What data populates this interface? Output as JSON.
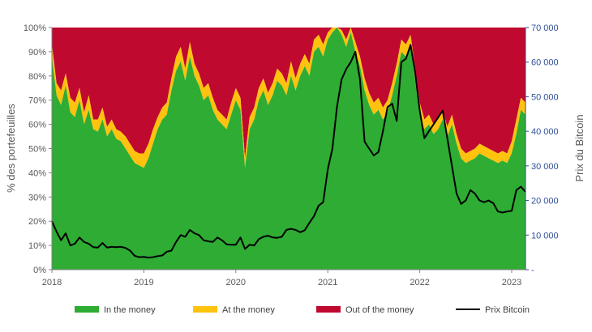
{
  "chart_data": {
    "type": "area",
    "ylabel_left": "% des portefeuilles",
    "ylabel_right": "Prix du Bitcoin",
    "x_ticks": [
      "2018",
      "2019",
      "2020",
      "2021",
      "2022",
      "2023"
    ],
    "x_range": [
      2018.0,
      2023.15
    ],
    "y_left_range": [
      0,
      100
    ],
    "y_left_ticks": [
      "0%",
      "10%",
      "20%",
      "30%",
      "40%",
      "50%",
      "60%",
      "70%",
      "80%",
      "90%",
      "100%"
    ],
    "y_right_range": [
      0,
      70000
    ],
    "y_right_ticks": [
      "-",
      "10 000",
      "20 000",
      "30 000",
      "40 000",
      "50 000",
      "60 000",
      "70 000"
    ],
    "colors": {
      "in_the_money": "#2eac33",
      "at_the_money": "#ffc20e",
      "out_of_the_money": "#c0092f",
      "price_line": "#000000",
      "right_axis": "#2f4f9a"
    },
    "legend": {
      "in_the_money": "In the money",
      "at_the_money": "At the money",
      "out_of_the_money": "Out of the money",
      "price": "Prix Bitcoin"
    },
    "x": [
      2018.0,
      2018.05,
      2018.1,
      2018.15,
      2018.2,
      2018.25,
      2018.3,
      2018.35,
      2018.4,
      2018.45,
      2018.5,
      2018.55,
      2018.6,
      2018.65,
      2018.7,
      2018.75,
      2018.8,
      2018.85,
      2018.9,
      2018.95,
      2019.0,
      2019.05,
      2019.1,
      2019.15,
      2019.2,
      2019.25,
      2019.3,
      2019.35,
      2019.4,
      2019.45,
      2019.5,
      2019.55,
      2019.6,
      2019.65,
      2019.7,
      2019.75,
      2019.8,
      2019.85,
      2019.9,
      2019.95,
      2020.0,
      2020.05,
      2020.1,
      2020.15,
      2020.2,
      2020.25,
      2020.3,
      2020.35,
      2020.4,
      2020.45,
      2020.5,
      2020.55,
      2020.6,
      2020.65,
      2020.7,
      2020.75,
      2020.8,
      2020.85,
      2020.9,
      2020.95,
      2021.0,
      2021.05,
      2021.1,
      2021.15,
      2021.2,
      2021.25,
      2021.3,
      2021.35,
      2021.4,
      2021.45,
      2021.5,
      2021.55,
      2021.6,
      2021.65,
      2021.7,
      2021.75,
      2021.8,
      2021.85,
      2021.9,
      2021.95,
      2022.0,
      2022.05,
      2022.1,
      2022.15,
      2022.2,
      2022.25,
      2022.3,
      2022.35,
      2022.4,
      2022.45,
      2022.5,
      2022.55,
      2022.6,
      2022.65,
      2022.7,
      2022.75,
      2022.8,
      2022.85,
      2022.9,
      2022.95,
      2023.0,
      2023.05,
      2023.1,
      2023.15
    ],
    "series": [
      {
        "name": "In the money",
        "values": [
          88,
          72,
          68,
          76,
          65,
          63,
          70,
          60,
          66,
          58,
          57,
          62,
          55,
          58,
          54,
          53,
          50,
          47,
          44,
          43,
          42,
          46,
          52,
          58,
          62,
          64,
          74,
          82,
          86,
          78,
          88,
          80,
          76,
          70,
          72,
          66,
          62,
          60,
          58,
          64,
          70,
          66,
          42,
          58,
          62,
          70,
          74,
          68,
          72,
          78,
          76,
          72,
          80,
          74,
          80,
          84,
          80,
          90,
          92,
          88,
          95,
          98,
          100,
          97,
          92,
          98,
          90,
          84,
          74,
          68,
          64,
          66,
          62,
          65,
          72,
          80,
          90,
          88,
          92,
          78,
          64,
          58,
          60,
          56,
          58,
          62,
          55,
          60,
          52,
          46,
          44,
          45,
          46,
          48,
          47,
          46,
          45,
          44,
          45,
          44,
          48,
          56,
          66,
          64
        ]
      },
      {
        "name": "At the money",
        "values": [
          5,
          5,
          6,
          5,
          6,
          6,
          5,
          5,
          6,
          4,
          5,
          5,
          4,
          4,
          4,
          4,
          5,
          5,
          5,
          5,
          6,
          6,
          6,
          5,
          5,
          5,
          5,
          6,
          6,
          5,
          6,
          5,
          5,
          5,
          5,
          5,
          4,
          4,
          4,
          5,
          5,
          5,
          4,
          5,
          5,
          5,
          5,
          5,
          5,
          5,
          5,
          5,
          6,
          5,
          5,
          5,
          5,
          5,
          5,
          5,
          3,
          2,
          0,
          2,
          3,
          2,
          4,
          4,
          5,
          5,
          5,
          5,
          5,
          5,
          5,
          5,
          5,
          5,
          5,
          5,
          5,
          4,
          4,
          4,
          5,
          4,
          4,
          4,
          4,
          4,
          4,
          4,
          4,
          4,
          4,
          4,
          4,
          4,
          4,
          4,
          5,
          6,
          5,
          5
        ]
      },
      {
        "name": "Out of the money",
        "values": [
          7,
          23,
          26,
          19,
          29,
          31,
          25,
          35,
          28,
          38,
          38,
          33,
          41,
          38,
          42,
          43,
          45,
          48,
          51,
          52,
          52,
          48,
          42,
          37,
          33,
          31,
          21,
          12,
          8,
          17,
          6,
          15,
          19,
          25,
          23,
          29,
          34,
          36,
          38,
          31,
          25,
          29,
          54,
          37,
          33,
          25,
          21,
          27,
          23,
          17,
          19,
          23,
          14,
          21,
          15,
          11,
          15,
          5,
          3,
          7,
          2,
          0,
          0,
          1,
          5,
          0,
          6,
          12,
          21,
          27,
          31,
          29,
          33,
          30,
          23,
          15,
          5,
          7,
          3,
          17,
          31,
          38,
          36,
          40,
          37,
          34,
          41,
          36,
          44,
          50,
          52,
          51,
          50,
          48,
          49,
          50,
          51,
          52,
          51,
          52,
          47,
          38,
          29,
          31
        ]
      },
      {
        "name": "Prix Bitcoin",
        "axis": "right",
        "values": [
          14000,
          11000,
          8500,
          10500,
          7000,
          7500,
          9300,
          8000,
          7500,
          6500,
          6400,
          7700,
          6400,
          6600,
          6500,
          6600,
          6300,
          5500,
          4000,
          3600,
          3700,
          3500,
          3600,
          3900,
          4100,
          5200,
          5500,
          8000,
          10000,
          9500,
          11500,
          10500,
          10000,
          8500,
          8200,
          8000,
          9300,
          8500,
          7300,
          7200,
          7200,
          9300,
          6000,
          7200,
          7000,
          8800,
          9500,
          9800,
          9300,
          9200,
          9500,
          11500,
          11800,
          11500,
          10800,
          11400,
          13500,
          15500,
          18500,
          19500,
          29000,
          35000,
          47000,
          55000,
          58000,
          60000,
          63000,
          55000,
          37000,
          35000,
          33000,
          34000,
          40000,
          47000,
          48000,
          43000,
          60000,
          61000,
          65000,
          57000,
          46000,
          38000,
          40000,
          42000,
          44000,
          46000,
          38000,
          30000,
          22000,
          19000,
          20000,
          23000,
          22000,
          20000,
          19500,
          20000,
          19200,
          16800,
          16500,
          16800,
          17000,
          23000,
          24000,
          22500
        ]
      }
    ]
  }
}
